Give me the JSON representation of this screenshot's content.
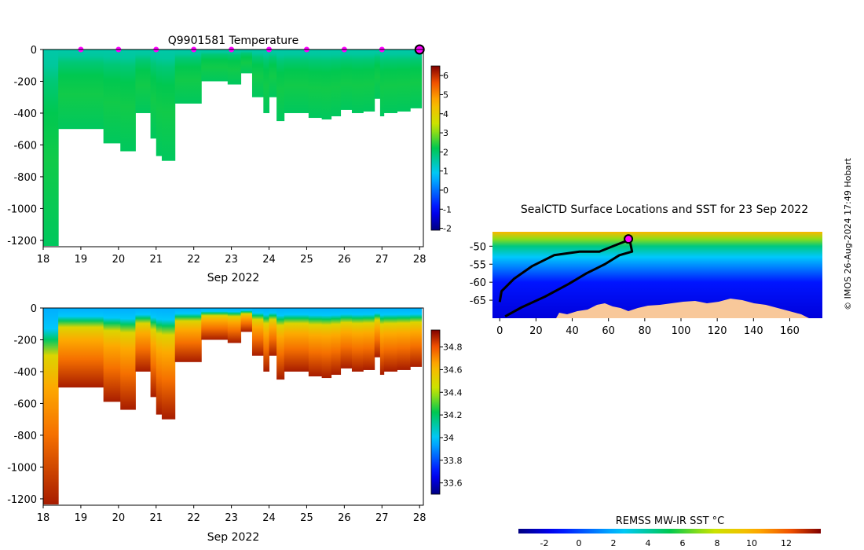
{
  "figure": {
    "credit": "© IMOS 26-Aug-2024 17:49 Hobart"
  },
  "chart_data": [
    {
      "id": "temperature",
      "type": "heatmap",
      "title": "Q9901581  Temperature",
      "xlabel": "Sep 2022",
      "ylabel": "",
      "xlim": [
        18,
        28.1
      ],
      "ylim": [
        -1240,
        0
      ],
      "x_ticks": [
        18,
        19,
        20,
        21,
        22,
        23,
        24,
        25,
        26,
        27,
        28
      ],
      "y_ticks": [
        0,
        -200,
        -400,
        -600,
        -800,
        -1000,
        -1200
      ],
      "colorbar": {
        "min": -2.1,
        "max": 6.5,
        "ticks": [
          6,
          5,
          4,
          3,
          2,
          1,
          0,
          -1,
          -2
        ]
      },
      "profile_markers": [
        19,
        20,
        21,
        22,
        23,
        24,
        25,
        26,
        27
      ],
      "last_profile_marker": 28,
      "profiles": [
        {
          "x0": 18.0,
          "x1": 18.4,
          "bottom": -1235
        },
        {
          "x0": 18.4,
          "x1": 19.6,
          "bottom": -500
        },
        {
          "x0": 19.6,
          "x1": 20.05,
          "bottom": -590
        },
        {
          "x0": 20.05,
          "x1": 20.45,
          "bottom": -640
        },
        {
          "x0": 20.45,
          "x1": 20.85,
          "bottom": -400
        },
        {
          "x0": 20.85,
          "x1": 21.0,
          "bottom": -560
        },
        {
          "x0": 21.0,
          "x1": 21.15,
          "bottom": -670
        },
        {
          "x0": 21.15,
          "x1": 21.5,
          "bottom": -700
        },
        {
          "x0": 21.5,
          "x1": 22.2,
          "bottom": -340
        },
        {
          "x0": 22.2,
          "x1": 22.9,
          "bottom": -200
        },
        {
          "x0": 22.9,
          "x1": 23.25,
          "bottom": -220
        },
        {
          "x0": 23.25,
          "x1": 23.55,
          "bottom": -150
        },
        {
          "x0": 23.55,
          "x1": 23.85,
          "bottom": -300
        },
        {
          "x0": 23.85,
          "x1": 24.0,
          "bottom": -400
        },
        {
          "x0": 24.0,
          "x1": 24.2,
          "bottom": -300
        },
        {
          "x0": 24.2,
          "x1": 24.4,
          "bottom": -450
        },
        {
          "x0": 24.4,
          "x1": 25.05,
          "bottom": -400
        },
        {
          "x0": 25.05,
          "x1": 25.4,
          "bottom": -430
        },
        {
          "x0": 25.4,
          "x1": 25.65,
          "bottom": -440
        },
        {
          "x0": 25.65,
          "x1": 25.9,
          "bottom": -420
        },
        {
          "x0": 25.9,
          "x1": 26.2,
          "bottom": -380
        },
        {
          "x0": 26.2,
          "x1": 26.5,
          "bottom": -400
        },
        {
          "x0": 26.5,
          "x1": 26.8,
          "bottom": -390
        },
        {
          "x0": 26.8,
          "x1": 26.95,
          "bottom": -310
        },
        {
          "x0": 26.95,
          "x1": 27.05,
          "bottom": -420
        },
        {
          "x0": 27.05,
          "x1": 27.4,
          "bottom": -400
        },
        {
          "x0": 27.4,
          "x1": 27.75,
          "bottom": -390
        },
        {
          "x0": 27.75,
          "x1": 28.05,
          "bottom": -370
        }
      ],
      "vertical_profile": [
        {
          "depth": 0,
          "value": 1.5
        },
        {
          "depth": -100,
          "value": 1.6
        },
        {
          "depth": -200,
          "value": 1.9
        },
        {
          "depth": -400,
          "value": 2.2
        },
        {
          "depth": -700,
          "value": 2.3
        },
        {
          "depth": -1240,
          "value": 2.1
        }
      ]
    },
    {
      "id": "salinity",
      "type": "heatmap",
      "title": "",
      "xlabel": "Sep 2022",
      "ylabel": "",
      "xlim": [
        18,
        28.1
      ],
      "ylim": [
        -1240,
        0
      ],
      "x_ticks": [
        18,
        19,
        20,
        21,
        22,
        23,
        24,
        25,
        26,
        27,
        28
      ],
      "y_ticks": [
        0,
        -200,
        -400,
        -600,
        -800,
        -1000,
        -1200
      ],
      "colorbar": {
        "min": 33.5,
        "max": 34.95,
        "ticks": [
          34.8,
          34.6,
          34.4,
          34.2,
          34,
          33.8,
          33.6
        ]
      },
      "vertical_profile": [
        {
          "depth": 0,
          "value": 33.95
        },
        {
          "depth": -130,
          "value": 34.0
        },
        {
          "depth": -200,
          "value": 34.2
        },
        {
          "depth": -300,
          "value": 34.5
        },
        {
          "depth": -500,
          "value": 34.65
        },
        {
          "depth": -800,
          "value": 34.75
        },
        {
          "depth": -1240,
          "value": 34.9
        }
      ]
    },
    {
      "id": "sst_map",
      "type": "heatmap",
      "title": "SealCTD Surface Locations and SST for 23 Sep 2022",
      "xlabel": "",
      "ylabel": "",
      "xlim": [
        -4,
        178
      ],
      "ylim": [
        -70,
        -46
      ],
      "x_ticks": [
        0,
        20,
        40,
        60,
        80,
        100,
        120,
        140,
        160
      ],
      "y_ticks": [
        -50,
        -55,
        -60,
        -65
      ],
      "colorbar": {
        "label": "REMSS MW-IR SST °C",
        "min": -3.5,
        "max": 14,
        "ticks": [
          -2,
          0,
          2,
          4,
          6,
          8,
          10,
          12
        ]
      },
      "sst_zones": [
        {
          "lat": -46.0,
          "value": 10.0
        },
        {
          "lat": -48.0,
          "value": 7.0
        },
        {
          "lat": -50.0,
          "value": 4.5
        },
        {
          "lat": -53.0,
          "value": 2.5
        },
        {
          "lat": -56.0,
          "value": 1.0
        },
        {
          "lat": -60.0,
          "value": -1.0
        },
        {
          "lat": -70.0,
          "value": -2.0
        }
      ],
      "track": [
        [
          70,
          -48.5
        ],
        [
          65,
          -49.5
        ],
        [
          55,
          -51.5
        ],
        [
          44,
          -51.5
        ],
        [
          30,
          -52.5
        ],
        [
          18,
          -55.5
        ],
        [
          8,
          -59.0
        ],
        [
          1,
          -62.5
        ],
        [
          0,
          -65.5
        ]
      ],
      "track2": [
        [
          72,
          -49.0
        ],
        [
          73,
          -51.5
        ],
        [
          66,
          -52.5
        ],
        [
          58,
          -55.0
        ],
        [
          48,
          -57.5
        ],
        [
          38,
          -60.5
        ],
        [
          25,
          -64.0
        ],
        [
          12,
          -67.0
        ],
        [
          3,
          -69.5
        ]
      ],
      "current_position": [
        71,
        -48.0
      ]
    }
  ]
}
